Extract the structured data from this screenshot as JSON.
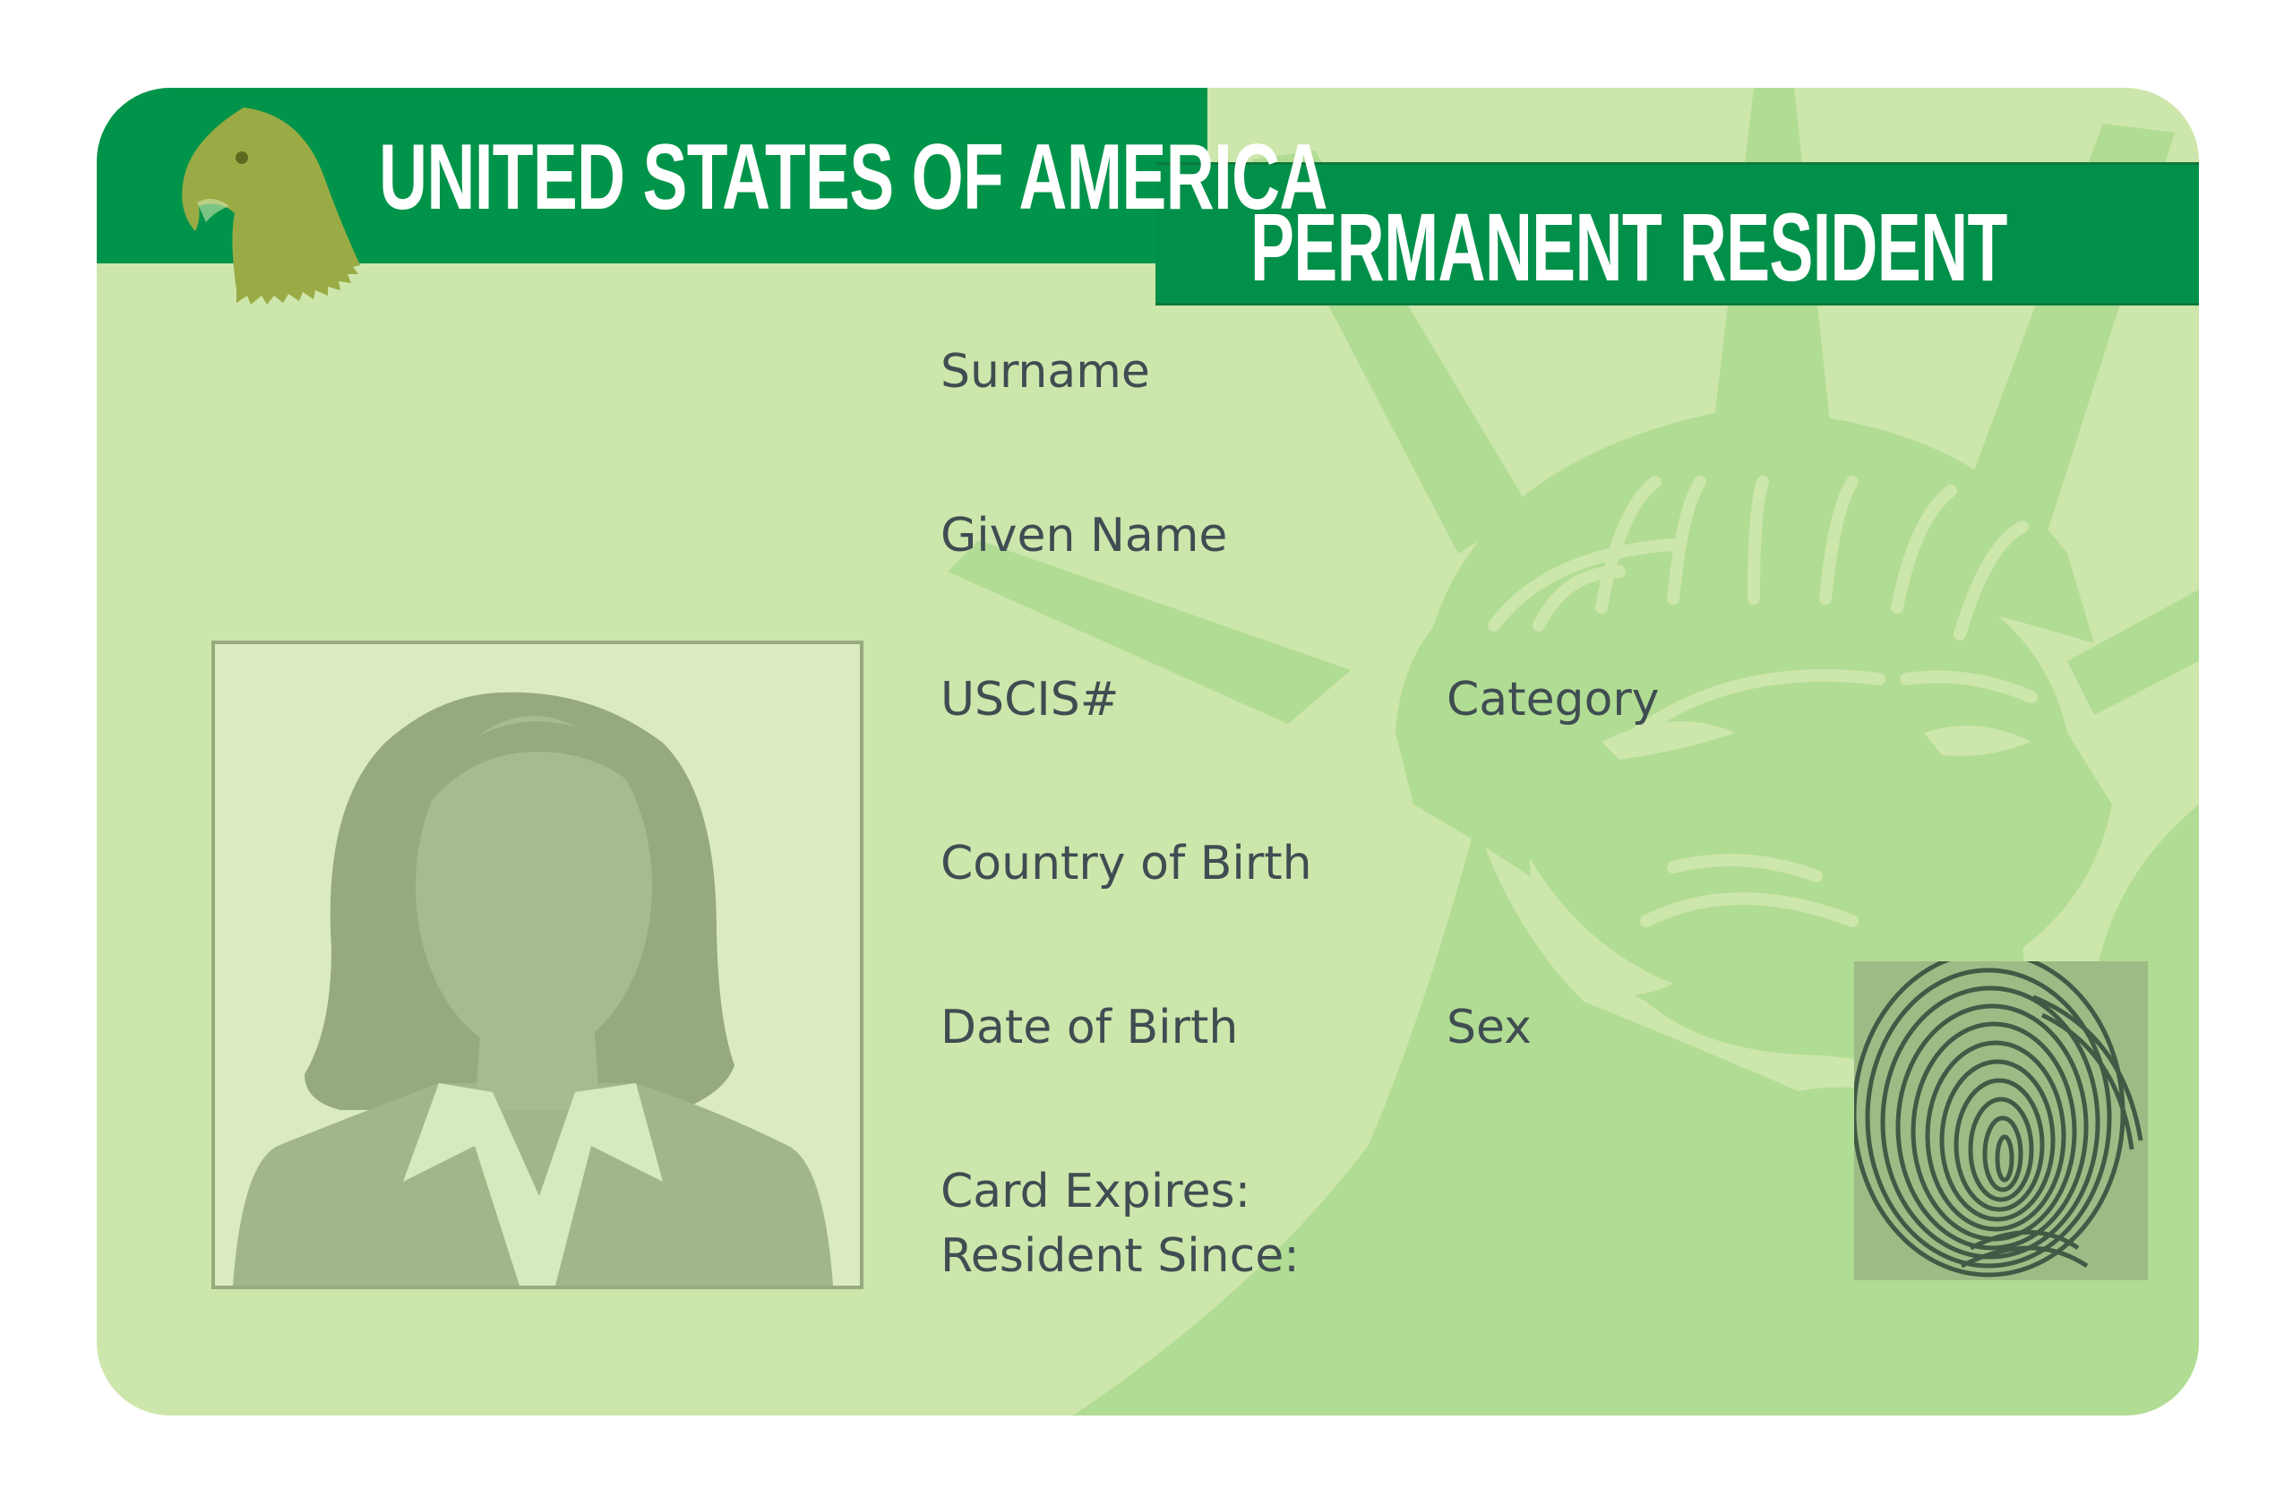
{
  "card": {
    "country_title": "UNITED STATES OF AMERICA",
    "card_type": "PERMANENT RESIDENT"
  },
  "fields": {
    "surname": "Surname",
    "given_name": "Given Name",
    "uscis": "USCIS#",
    "category": "Category",
    "country_of_birth": "Country of Birth",
    "date_of_birth": "Date of Birth",
    "sex": "Sex",
    "card_expires": "Card Expires:",
    "resident_since": "Resident Since:"
  },
  "colors": {
    "card_background": "#cde6ab",
    "header_green": "#00944a",
    "eagle_olive": "#9aab45",
    "statue_green": "#b0dc92",
    "label_text": "#3f4d52",
    "photo_silhouette": "#97a97e"
  },
  "icons": {
    "eagle": "eagle-icon",
    "statue": "statue-of-liberty-icon",
    "fingerprint": "fingerprint-icon",
    "portrait": "portrait-silhouette-icon"
  }
}
